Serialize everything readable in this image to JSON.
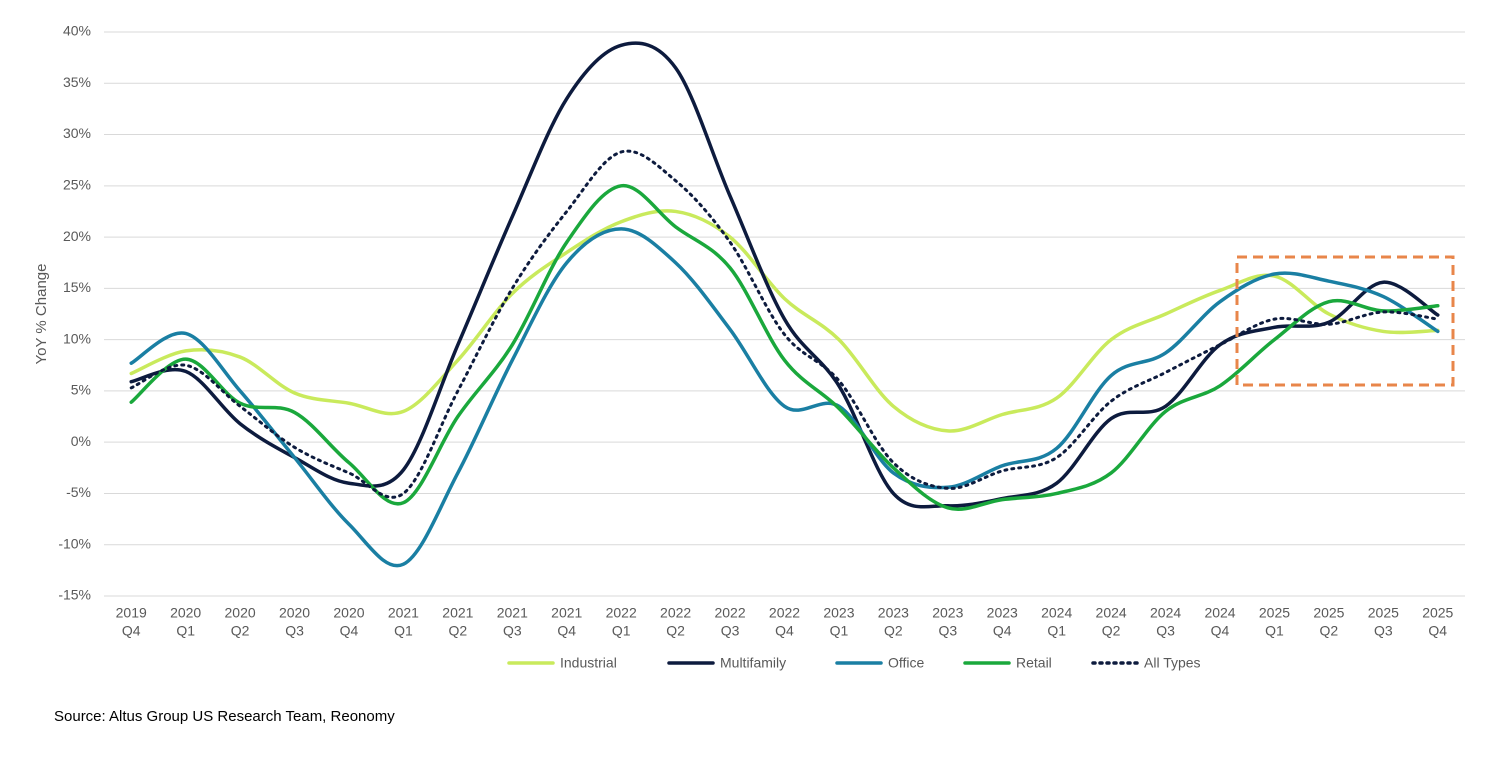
{
  "chart_data": {
    "type": "line",
    "y_label": "YoY % Change",
    "source": "Source: Altus Group US Research Team, Reonomy",
    "categories": [
      [
        "2019",
        "Q4"
      ],
      [
        "2020",
        "Q1"
      ],
      [
        "2020",
        "Q2"
      ],
      [
        "2020",
        "Q3"
      ],
      [
        "2020",
        "Q4"
      ],
      [
        "2021",
        "Q1"
      ],
      [
        "2021",
        "Q2"
      ],
      [
        "2021",
        "Q3"
      ],
      [
        "2021",
        "Q4"
      ],
      [
        "2022",
        "Q1"
      ],
      [
        "2022",
        "Q2"
      ],
      [
        "2022",
        "Q3"
      ],
      [
        "2022",
        "Q4"
      ],
      [
        "2023",
        "Q1"
      ],
      [
        "2023",
        "Q2"
      ],
      [
        "2023",
        "Q3"
      ],
      [
        "2023",
        "Q4"
      ],
      [
        "2024",
        "Q1"
      ],
      [
        "2024",
        "Q2"
      ],
      [
        "2024",
        "Q3"
      ],
      [
        "2024",
        "Q4"
      ],
      [
        "2025",
        "Q1"
      ],
      [
        "2025",
        "Q2"
      ],
      [
        "2025",
        "Q3"
      ],
      [
        "2025",
        "Q4"
      ]
    ],
    "ylim": [
      -15,
      40
    ],
    "yticks": [
      {
        "value": -15,
        "label": "-15%"
      },
      {
        "value": -10,
        "label": "-10%"
      },
      {
        "value": -5,
        "label": "-5%"
      },
      {
        "value": 0,
        "label": "0%"
      },
      {
        "value": 5,
        "label": "5%"
      },
      {
        "value": 10,
        "label": "10%"
      },
      {
        "value": 15,
        "label": "15%"
      },
      {
        "value": 20,
        "label": "20%"
      },
      {
        "value": 25,
        "label": "25%"
      },
      {
        "value": 30,
        "label": "30%"
      },
      {
        "value": 35,
        "label": "35%"
      },
      {
        "value": 40,
        "label": "40%"
      }
    ],
    "grid": true,
    "legend": "bottom",
    "series": [
      {
        "name": "Industrial",
        "color": "#c9ea5c",
        "line_style": "solid",
        "values": [
          6.7,
          8.9,
          8.3,
          4.8,
          3.8,
          3.0,
          8.0,
          14.5,
          18.5,
          21.5,
          22.5,
          20.0,
          14.0,
          10.0,
          3.5,
          1.1,
          2.7,
          4.3,
          10.0,
          12.5,
          14.8,
          16.2,
          12.5,
          10.8,
          10.9
        ]
      },
      {
        "name": "Multifamily",
        "color": "#0d1b3e",
        "line_style": "solid",
        "values": [
          5.9,
          6.9,
          1.8,
          -1.5,
          -4.0,
          -2.7,
          9.5,
          22.0,
          33.5,
          38.7,
          36.5,
          24.0,
          12.0,
          5.5,
          -5.0,
          -6.2,
          -5.5,
          -4.0,
          2.3,
          3.5,
          9.5,
          11.2,
          11.7,
          15.6,
          12.4
        ]
      },
      {
        "name": "Office",
        "color": "#1a7fa3",
        "line_style": "solid",
        "values": [
          7.7,
          10.6,
          5.0,
          -1.5,
          -8.0,
          -11.9,
          -3.0,
          8.0,
          17.5,
          20.8,
          17.5,
          11.0,
          3.5,
          3.5,
          -3.0,
          -4.4,
          -2.3,
          -0.6,
          6.5,
          8.7,
          13.7,
          16.4,
          15.7,
          14.2,
          10.8
        ]
      },
      {
        "name": "Retail",
        "color": "#1aa83c",
        "line_style": "solid",
        "values": [
          3.9,
          8.1,
          3.8,
          2.9,
          -2.0,
          -5.9,
          2.5,
          9.5,
          19.5,
          25.0,
          21.0,
          17.0,
          8.0,
          3.3,
          -2.5,
          -6.4,
          -5.6,
          -5.0,
          -3.0,
          3.0,
          5.5,
          10.0,
          13.7,
          12.8,
          13.3
        ]
      },
      {
        "name": "All Types",
        "color": "#0d1b3e",
        "line_style": "dotted",
        "values": [
          5.3,
          7.5,
          3.5,
          -0.5,
          -3.0,
          -5.0,
          5.0,
          15.0,
          22.5,
          28.3,
          25.5,
          19.5,
          10.5,
          6.0,
          -2.0,
          -4.5,
          -2.8,
          -1.5,
          4.0,
          6.8,
          9.5,
          12.0,
          11.5,
          12.7,
          12.0
        ]
      }
    ]
  }
}
